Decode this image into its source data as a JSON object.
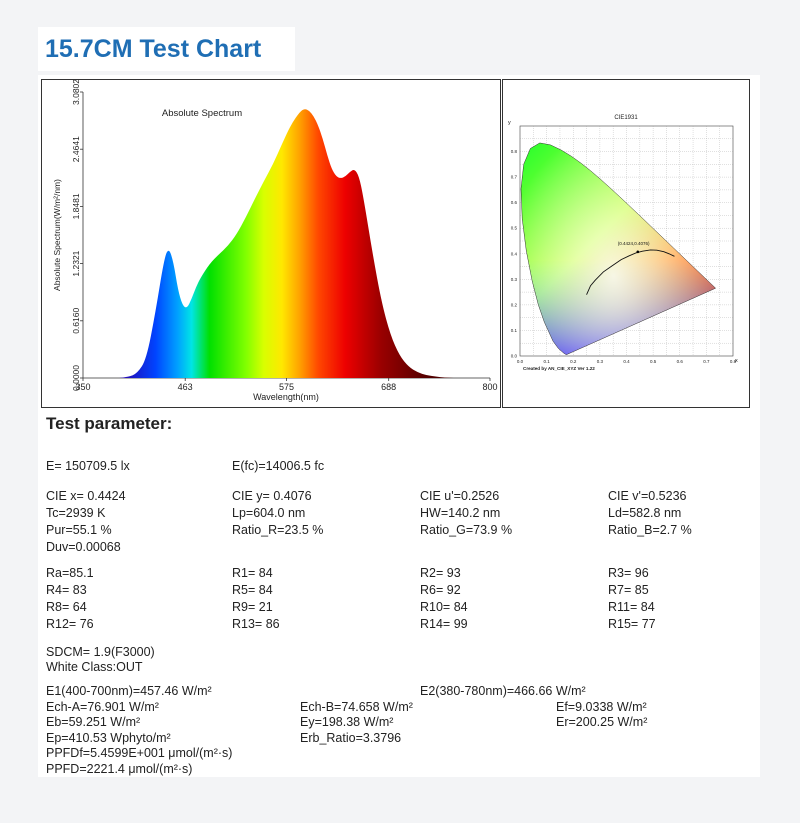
{
  "title": "15.7CM Test Chart",
  "spectrum_chart": {
    "title": "Absolute Spectrum",
    "xlabel": "Wavelength(nm)",
    "ylabel": "Absolute Spectrum(W/m²/nm)"
  },
  "cie_chart": {
    "title": "CIE1931",
    "credit": "Created by AN_CIE_XYZ Ver 1.22",
    "point_label": "(0.4424,0.4076)"
  },
  "chart_data": [
    {
      "type": "area",
      "title": "Absolute Spectrum",
      "xlabel": "Wavelength(nm)",
      "ylabel": "Absolute Spectrum(W/m²/nm)",
      "xlim": [
        350,
        800
      ],
      "ylim": [
        0,
        3.0802
      ],
      "x_ticks": [
        "350",
        "463",
        "575",
        "688",
        "800"
      ],
      "y_ticks": [
        "0.0000",
        "0.6160",
        "1.2321",
        "1.8481",
        "2.4641",
        "3.0802"
      ],
      "x": [
        390,
        400,
        410,
        420,
        430,
        440,
        445,
        450,
        455,
        460,
        465,
        470,
        475,
        480,
        490,
        500,
        510,
        520,
        530,
        540,
        550,
        560,
        570,
        580,
        590,
        595,
        600,
        605,
        610,
        615,
        620,
        625,
        630,
        635,
        640,
        645,
        650,
        655,
        660,
        670,
        680,
        690,
        700,
        710,
        720,
        730,
        740,
        750,
        760
      ],
      "y": [
        0.0,
        0.01,
        0.05,
        0.2,
        0.7,
        1.3,
        1.4,
        1.25,
        0.95,
        0.78,
        0.75,
        0.85,
        0.98,
        1.08,
        1.23,
        1.33,
        1.42,
        1.55,
        1.73,
        1.93,
        2.12,
        2.3,
        2.52,
        2.73,
        2.87,
        2.9,
        2.88,
        2.82,
        2.72,
        2.58,
        2.4,
        2.25,
        2.17,
        2.15,
        2.17,
        2.22,
        2.25,
        2.18,
        1.95,
        1.35,
        0.82,
        0.46,
        0.24,
        0.12,
        0.06,
        0.03,
        0.015,
        0.005,
        0.0
      ],
      "grid": false
    },
    {
      "type": "scatter",
      "title": "CIE1931",
      "xlabel": "x",
      "ylabel": "y",
      "xlim": [
        0,
        0.8
      ],
      "ylim": [
        0,
        0.9
      ],
      "x_ticks": [
        "0.0",
        "0.1",
        "0.2",
        "0.3",
        "0.4",
        "0.5",
        "0.6",
        "0.7",
        "0.8"
      ],
      "y_ticks": [
        "0.0",
        "0.1",
        "0.2",
        "0.3",
        "0.4",
        "0.5",
        "0.6",
        "0.7",
        "0.8"
      ],
      "points": [
        {
          "x": 0.4424,
          "y": 0.4076,
          "label": "(0.4424,0.4076)"
        }
      ],
      "grid": true
    }
  ],
  "params": {
    "heading": "Test parameter:",
    "E": "E=  150709.5 lx",
    "Efc": "E(fc)=14006.5 fc",
    "cie_x": "CIE x= 0.4424",
    "cie_y": "CIE y= 0.4076",
    "cie_u": "CIE u'=0.2526",
    "cie_v": "CIE v'=0.5236",
    "tc": "Tc=2939 K",
    "lp": "Lp=604.0 nm",
    "hw": "HW=140.2 nm",
    "ld": "Ld=582.8 nm",
    "pur": "Pur=55.1 %",
    "ratio_r": "Ratio_R=23.5 %",
    "ratio_g": "Ratio_G=73.9 %",
    "ratio_b": "Ratio_B=2.7 %",
    "duv": "Duv=0.00068",
    "ra": "Ra=85.1",
    "r1": "R1= 84",
    "r2": "R2= 93",
    "r3": "R3= 96",
    "r4": "R4= 83",
    "r5": "R5= 84",
    "r6": "R6= 92",
    "r7": "R7= 85",
    "r8": "R8= 64",
    "r9": "R9= 21",
    "r10": "R10= 84",
    "r11": "R11= 84",
    "r12": "R12= 76",
    "r13": "R13= 86",
    "r14": "R14= 99",
    "r15": "R15= 77",
    "sdcm": "SDCM= 1.9(F3000)",
    "white_class": "White Class:OUT",
    "e1": "E1(400-700nm)=457.46 W/m²",
    "e2": "E2(380-780nm)=466.66 W/m²",
    "ech_a": "Ech-A=76.901 W/m²",
    "ech_b": "Ech-B=74.658 W/m²",
    "ef": "Ef=9.0338 W/m²",
    "eb": "Eb=59.251 W/m²",
    "ey": "Ey=198.38 W/m²",
    "er": "Er=200.25 W/m²",
    "ep": "Ep=410.53 Wphyto/m²",
    "erb": "Erb_Ratio=3.3796",
    "ppfdf": "PPFDf=5.4599E+001 μmol/(m²·s)",
    "ppfd": "PPFD=2221.4 μmol/(m²·s)"
  }
}
